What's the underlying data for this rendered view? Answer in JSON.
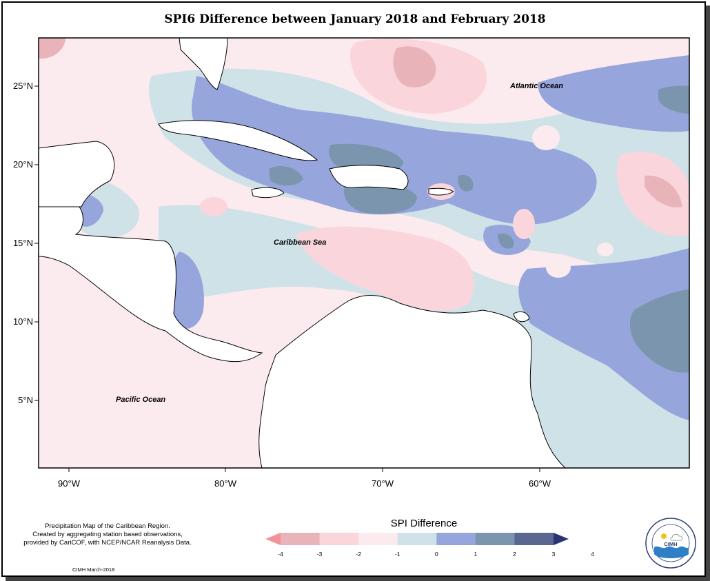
{
  "title": "SPI6 Difference between January 2018 and February 2018",
  "map": {
    "lat_ticks": [
      "25°N",
      "20°N",
      "15°N",
      "10°N",
      "5°N"
    ],
    "lon_ticks": [
      "90°W",
      "80°W",
      "70°W",
      "60°W"
    ],
    "labels": {
      "atlantic": "Atlantic Ocean",
      "caribbean": "Caribbean Sea",
      "pacific": "Pacific Ocean"
    }
  },
  "legend": {
    "title": "SPI Difference",
    "ticks": [
      "-4",
      "-3",
      "-2",
      "-1",
      "0",
      "1",
      "2",
      "3",
      "4"
    ],
    "colors": [
      "#f2939b",
      "#e8b4ba",
      "#fad6dc",
      "#fcebee",
      "#cfe2e8",
      "#96a5db",
      "#7c95ae",
      "#5a6791",
      "#2b3377"
    ]
  },
  "credit": {
    "line1": "Precipitation Map of the Caribbean Region.",
    "line2": "Created by aggregating station based observations,",
    "line3": "provided by CariCOF, with NCEP/NCAR Reanalysis Data.",
    "date": "CIMH March-2018"
  },
  "logo": {
    "text": "CIMH",
    "ring_text": "Caribbean Institute for Meteorology and Hydrology"
  }
}
